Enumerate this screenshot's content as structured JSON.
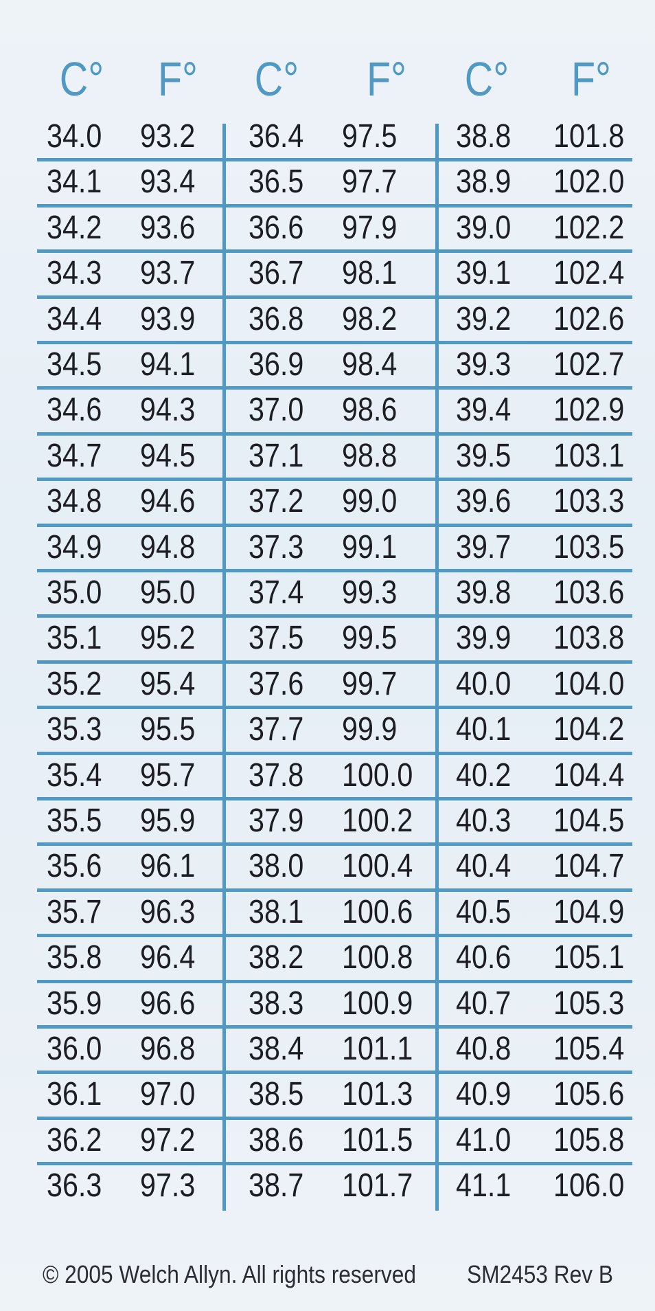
{
  "headers": [
    "C°",
    "F°",
    "C°",
    "F°",
    "C°",
    "F°"
  ],
  "rows": [
    [
      "34.0",
      "93.2",
      "36.4",
      "97.5",
      "38.8",
      "101.8"
    ],
    [
      "34.1",
      "93.4",
      "36.5",
      "97.7",
      "38.9",
      "102.0"
    ],
    [
      "34.2",
      "93.6",
      "36.6",
      "97.9",
      "39.0",
      "102.2"
    ],
    [
      "34.3",
      "93.7",
      "36.7",
      "98.1",
      "39.1",
      "102.4"
    ],
    [
      "34.4",
      "93.9",
      "36.8",
      "98.2",
      "39.2",
      "102.6"
    ],
    [
      "34.5",
      "94.1",
      "36.9",
      "98.4",
      "39.3",
      "102.7"
    ],
    [
      "34.6",
      "94.3",
      "37.0",
      "98.6",
      "39.4",
      "102.9"
    ],
    [
      "34.7",
      "94.5",
      "37.1",
      "98.8",
      "39.5",
      "103.1"
    ],
    [
      "34.8",
      "94.6",
      "37.2",
      "99.0",
      "39.6",
      "103.3"
    ],
    [
      "34.9",
      "94.8",
      "37.3",
      "99.1",
      "39.7",
      "103.5"
    ],
    [
      "35.0",
      "95.0",
      "37.4",
      "99.3",
      "39.8",
      "103.6"
    ],
    [
      "35.1",
      "95.2",
      "37.5",
      "99.5",
      "39.9",
      "103.8"
    ],
    [
      "35.2",
      "95.4",
      "37.6",
      "99.7",
      "40.0",
      "104.0"
    ],
    [
      "35.3",
      "95.5",
      "37.7",
      "99.9",
      "40.1",
      "104.2"
    ],
    [
      "35.4",
      "95.7",
      "37.8",
      "100.0",
      "40.2",
      "104.4"
    ],
    [
      "35.5",
      "95.9",
      "37.9",
      "100.2",
      "40.3",
      "104.5"
    ],
    [
      "35.6",
      "96.1",
      "38.0",
      "100.4",
      "40.4",
      "104.7"
    ],
    [
      "35.7",
      "96.3",
      "38.1",
      "100.6",
      "40.5",
      "104.9"
    ],
    [
      "35.8",
      "96.4",
      "38.2",
      "100.8",
      "40.6",
      "105.1"
    ],
    [
      "35.9",
      "96.6",
      "38.3",
      "100.9",
      "40.7",
      "105.3"
    ],
    [
      "36.0",
      "96.8",
      "38.4",
      "101.1",
      "40.8",
      "105.4"
    ],
    [
      "36.1",
      "97.0",
      "38.5",
      "101.3",
      "40.9",
      "105.6"
    ],
    [
      "36.2",
      "97.2",
      "38.6",
      "101.5",
      "41.0",
      "105.8"
    ],
    [
      "36.3",
      "97.3",
      "38.7",
      "101.7",
      "41.1",
      "106.0"
    ]
  ],
  "footer": {
    "copyright": "© 2005 Welch Allyn. All rights reserved",
    "part_number": "SM2453 Rev B"
  },
  "colors": {
    "accent": "#4f99c3",
    "text": "#1c1e24",
    "background": "#e9f0f6"
  }
}
